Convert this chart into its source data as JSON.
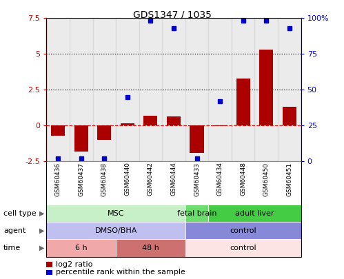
{
  "title": "GDS1347 / 1035",
  "samples": [
    "GSM60436",
    "GSM60437",
    "GSM60438",
    "GSM60440",
    "GSM60442",
    "GSM60444",
    "GSM60433",
    "GSM60434",
    "GSM60448",
    "GSM60450",
    "GSM60451"
  ],
  "log2_ratio": [
    -0.7,
    -1.8,
    -1.0,
    0.15,
    0.7,
    0.65,
    -1.9,
    -0.05,
    3.3,
    5.3,
    1.3
  ],
  "percentile_rank": [
    2,
    2,
    2,
    45,
    98,
    93,
    2,
    42,
    98,
    98,
    93
  ],
  "ylim_left": [
    -2.5,
    7.5
  ],
  "ylim_right": [
    0,
    100
  ],
  "left_ticks": [
    -2.5,
    0,
    2.5,
    5,
    7.5
  ],
  "right_ticks": [
    0,
    25,
    50,
    75,
    100
  ],
  "right_tick_labels": [
    "0",
    "25",
    "50",
    "75",
    "100%"
  ],
  "bar_color": "#aa0000",
  "dot_color": "#0000cc",
  "left_axis_color": "#cc0000",
  "right_axis_color": "#0000cc",
  "cell_type_groups": [
    {
      "label": "MSC",
      "start": 0,
      "end": 6,
      "color": "#c8f0c8"
    },
    {
      "label": "fetal brain",
      "start": 6,
      "end": 7,
      "color": "#6cdd6c"
    },
    {
      "label": "adult liver",
      "start": 7,
      "end": 11,
      "color": "#44cc44"
    }
  ],
  "agent_groups": [
    {
      "label": "DMSO/BHA",
      "start": 0,
      "end": 6,
      "color": "#c0c0f0"
    },
    {
      "label": "control",
      "start": 6,
      "end": 11,
      "color": "#8888d8"
    }
  ],
  "time_groups": [
    {
      "label": "6 h",
      "start": 0,
      "end": 3,
      "color": "#f0a8a8"
    },
    {
      "label": "48 h",
      "start": 3,
      "end": 6,
      "color": "#cc7070"
    },
    {
      "label": "control",
      "start": 6,
      "end": 11,
      "color": "#fce4e4"
    }
  ],
  "row_labels": [
    "cell type",
    "agent",
    "time"
  ],
  "legend": [
    {
      "color": "#aa0000",
      "label": "log2 ratio"
    },
    {
      "color": "#0000cc",
      "label": "percentile rank within the sample"
    }
  ]
}
